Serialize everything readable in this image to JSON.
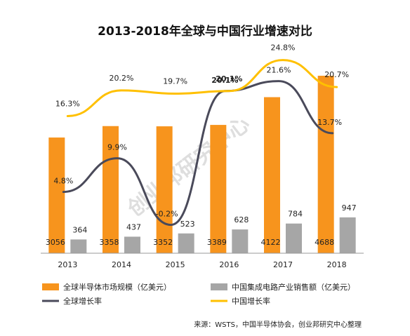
{
  "chart_data": {
    "type": "bar",
    "title": "2013-2018年全球与中国行业增速对比",
    "categories": [
      "2013",
      "2014",
      "2015",
      "2016",
      "2017",
      "2018"
    ],
    "bar_series": [
      {
        "name": "全球半导体市场规模（亿美元）",
        "values": [
          3056,
          3358,
          3352,
          3389,
          4122,
          4688
        ],
        "labels": [
          "3056",
          "3358",
          "3352",
          "3389",
          "4122",
          "4688"
        ],
        "color": "#F7941D"
      },
      {
        "name": "中国集成电路产业销售额（亿美元）",
        "values": [
          364,
          437,
          523,
          628,
          784,
          947
        ],
        "labels": [
          "364",
          "437",
          "523",
          "628",
          "784",
          "947"
        ],
        "color": "#A6A6A6"
      }
    ],
    "line_series": [
      {
        "name": "全球增长率",
        "values": [
          4.8,
          9.9,
          -0.2,
          20.1,
          21.6,
          13.7
        ],
        "labels": [
          "4.8%",
          "9.9%",
          "-0.2%",
          "20.1%",
          "21.6%",
          "13.7%"
        ],
        "color": "#4A4A5A"
      },
      {
        "name": "中国增长率",
        "values": [
          16.3,
          20.2,
          19.7,
          20.1,
          24.8,
          20.7
        ],
        "labels": [
          "16.3%",
          "20.2%",
          "19.7%",
          "20.1%",
          "24.8%",
          "20.7%"
        ],
        "color": "#FFC000"
      }
    ],
    "axis_color": "#999999",
    "grid": false,
    "legend_position": "bottom",
    "source": "来源：WSTS，中国半导体协会，创业邦研究中心整理",
    "watermark": "创业邦研究中心"
  }
}
